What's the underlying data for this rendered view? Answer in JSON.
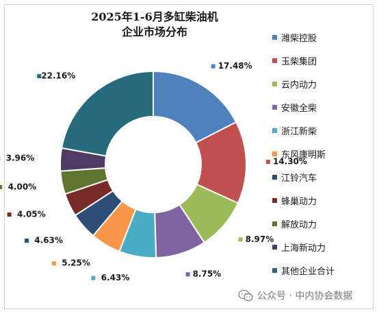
{
  "chart_data": {
    "type": "pie",
    "donut": true,
    "title_lines": [
      "2025年1-6月多缸柴油机",
      "企业市场分布"
    ],
    "legend_position": "right",
    "slices": [
      {
        "label": "潍柴控股",
        "value": 17.48,
        "value_label": "17.48%",
        "color": "#4f81bd"
      },
      {
        "label": "玉柴集团",
        "value": 14.3,
        "value_label": "14.30%",
        "color": "#c0504d"
      },
      {
        "label": "云内动力",
        "value": 8.97,
        "value_label": "8.97%",
        "color": "#9bbb59"
      },
      {
        "label": "安徽全柴",
        "value": 8.75,
        "value_label": "8.75%",
        "color": "#8064a2"
      },
      {
        "label": "浙江新柴",
        "value": 6.43,
        "value_label": "6.43%",
        "color": "#4bacc6"
      },
      {
        "label": "东风康明斯",
        "value": 5.25,
        "value_label": "5.25%",
        "color": "#f79646"
      },
      {
        "label": "江铃汽车",
        "value": 4.63,
        "value_label": "4.63%",
        "color": "#2c4d75"
      },
      {
        "label": "蜂巢动力",
        "value": 4.05,
        "value_label": "4.05%",
        "color": "#772c2a"
      },
      {
        "label": "解放动力",
        "value": 4.0,
        "value_label": "4.00%",
        "color": "#5f7530"
      },
      {
        "label": "上海新动力",
        "value": 3.96,
        "value_label": "3.96%",
        "color": "#4d3b62"
      },
      {
        "label": "其他企业合计",
        "value": 22.16,
        "value_label": "22.16%",
        "color": "#276a7c"
      }
    ]
  },
  "watermark": {
    "text": "公众号 · 中内协会数据",
    "logo_icon": "wechat-icon"
  }
}
